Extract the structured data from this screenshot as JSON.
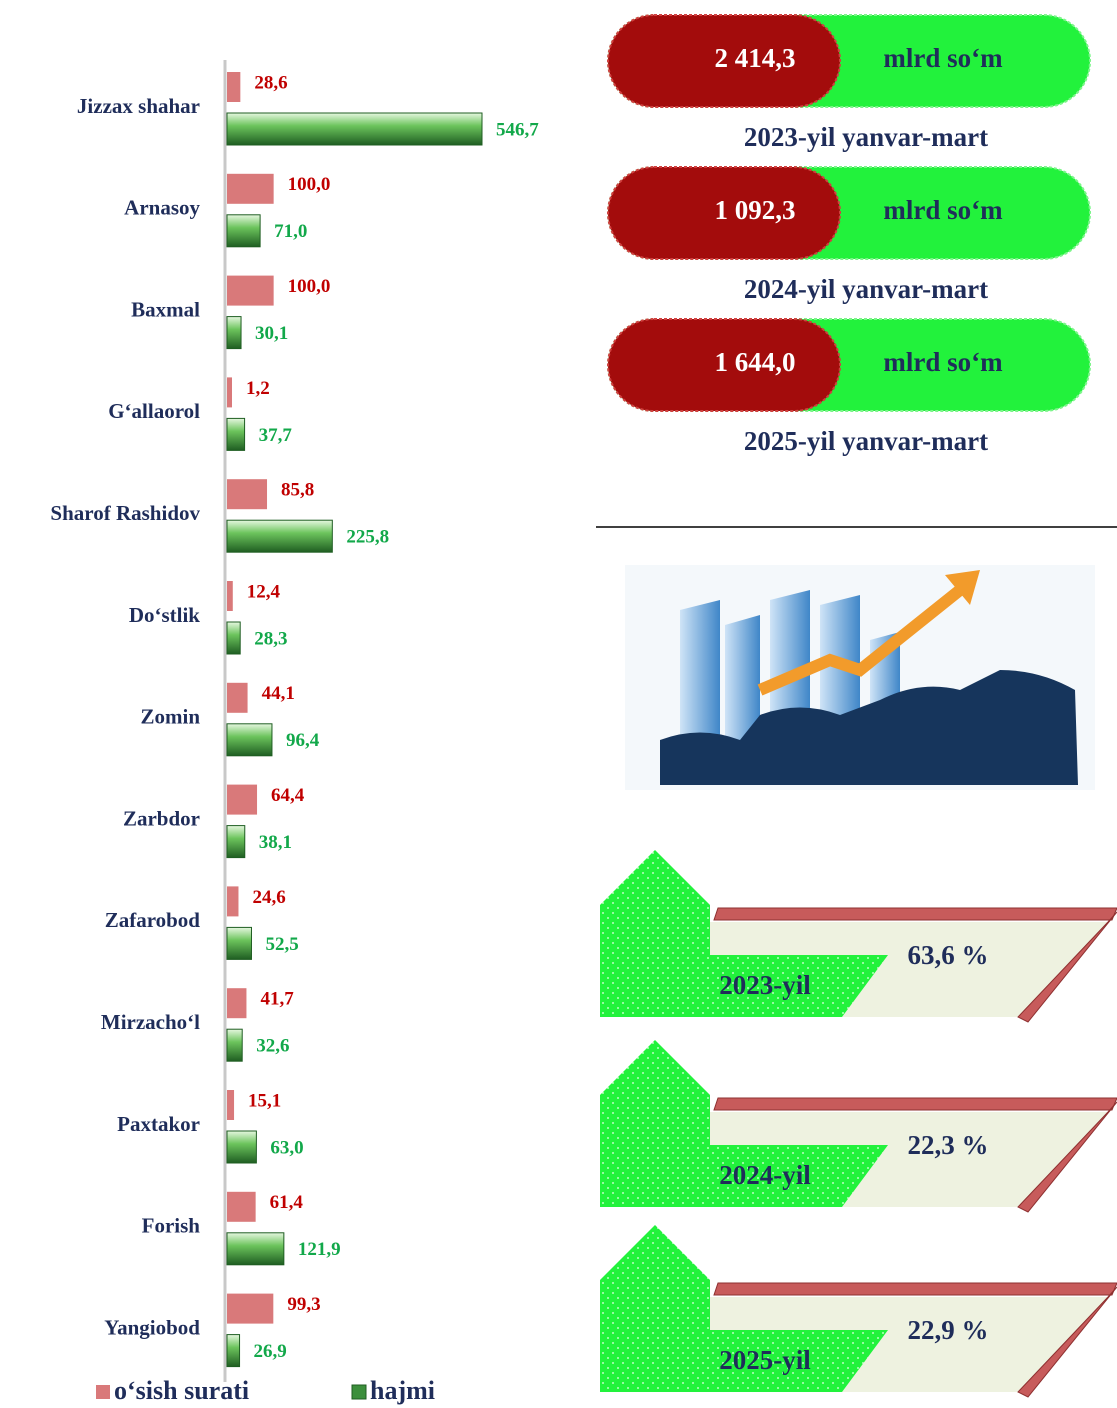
{
  "chart_data": {
    "type": "hbar",
    "categories": [
      "Jizzax shahar",
      "Arnasoy",
      "Baxmal",
      "G‘allaorol",
      "Sharof Rashidov",
      "Do‘stlik",
      "Zomin",
      "Zarbdor",
      "Zafarobod",
      "Mirzacho‘l",
      "Paxtakor",
      "Forish",
      "Yangiobod"
    ],
    "series": [
      {
        "name": "o‘sish surati",
        "color": "#d9797a",
        "label_color": "#c00000",
        "values": [
          28.6,
          100.0,
          100.0,
          1.2,
          85.8,
          12.4,
          44.1,
          64.4,
          24.6,
          41.7,
          15.1,
          61.4,
          99.3
        ],
        "value_labels": [
          "28,6",
          "100,0",
          "100,0",
          "1,2",
          "85,8",
          "12,4",
          "44,1",
          "64,4",
          "24,6",
          "41,7",
          "15,1",
          "61,4",
          "99,3"
        ]
      },
      {
        "name": "hajmi",
        "color": "#3c8f3c",
        "label_color": "#12a84a",
        "values": [
          546.7,
          71.0,
          30.1,
          37.7,
          225.8,
          28.3,
          96.4,
          38.1,
          52.5,
          32.6,
          63.0,
          121.9,
          26.9
        ],
        "value_labels": [
          "546,7",
          "71,0",
          "30,1",
          "37,7",
          "225,8",
          "28,3",
          "96,4",
          "38,1",
          "52,5",
          "32,6",
          "63,0",
          "121,9",
          "26,9"
        ]
      }
    ]
  },
  "summary": [
    {
      "value": "2 414,3",
      "unit": "mlrd  so‘m",
      "period": "2023-yil yanvar-mart"
    },
    {
      "value": "1 092,3",
      "unit": "mlrd  so‘m",
      "period": "2024-yil yanvar-mart"
    },
    {
      "value": "1 644,0",
      "unit": "mlrd  so‘m",
      "period": "2025-yil yanvar-mart"
    }
  ],
  "shares": [
    {
      "year": "2023-yil",
      "percent": "63,6 %"
    },
    {
      "year": "2024-yil",
      "percent": "22,3 %"
    },
    {
      "year": "2025-yil",
      "percent": "22,9 %"
    }
  ]
}
